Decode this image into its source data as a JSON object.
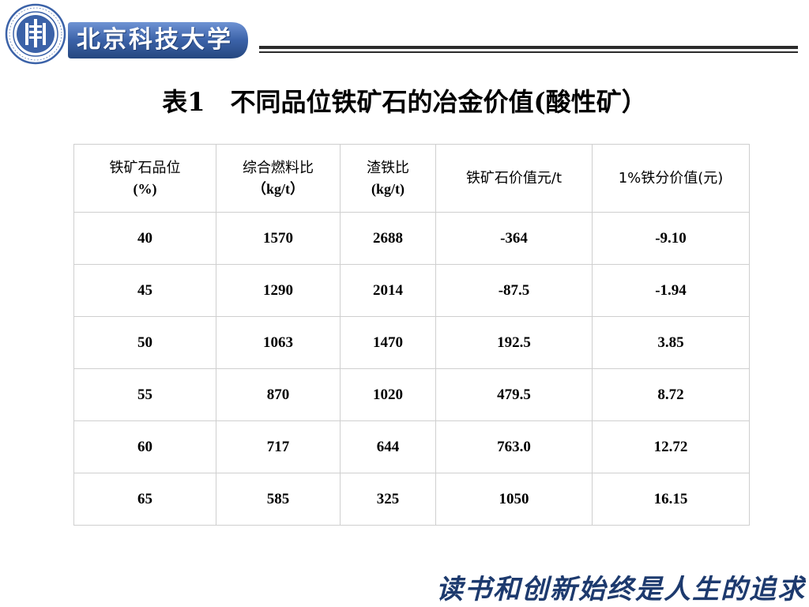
{
  "header": {
    "brand_name": "北京科技大学"
  },
  "title": "表1　不同品位铁矿石的冶金价值(酸性矿）",
  "table": {
    "columns": [
      {
        "line1": "铁矿石品位",
        "line2": "(%)"
      },
      {
        "line1": "综合燃料比",
        "line2": "（kg/t）"
      },
      {
        "line1": "渣铁比",
        "line2": "(kg/t)"
      },
      {
        "line1": "铁矿石价值元/t",
        "line2": ""
      },
      {
        "line1": "1%铁分价值(元)",
        "line2": ""
      }
    ],
    "rows": [
      [
        "40",
        "1570",
        "2688",
        "-364",
        "-9.10"
      ],
      [
        "45",
        "1290",
        "2014",
        "-87.5",
        "-1.94"
      ],
      [
        "50",
        "1063",
        "1470",
        "192.5",
        "3.85"
      ],
      [
        "55",
        "870",
        "1020",
        "479.5",
        "8.72"
      ],
      [
        "60",
        "717",
        "644",
        "763.0",
        "12.72"
      ],
      [
        "65",
        "585",
        "325",
        "1050",
        "16.15"
      ]
    ]
  },
  "footer": {
    "motto": "读书和创新始终是人生的追求"
  },
  "colors": {
    "brand_blue": "#3b62a8",
    "motto_blue": "#1d3a6e"
  }
}
